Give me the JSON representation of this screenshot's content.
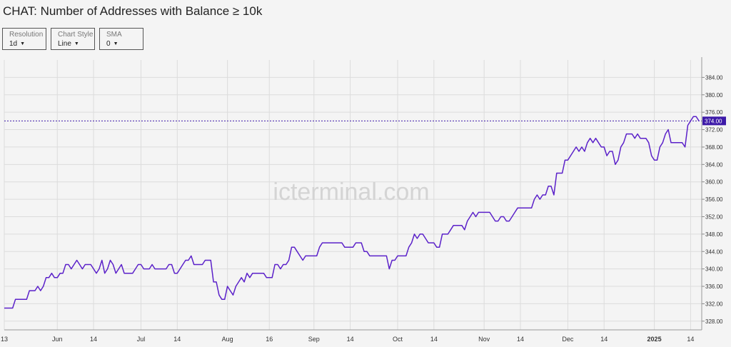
{
  "title": "CHAT: Number of Addresses with Balance ≥ 10k",
  "controls": [
    {
      "label": "Resolution",
      "value": "1d"
    },
    {
      "label": "Chart Style",
      "value": "Line"
    },
    {
      "label": "SMA",
      "value": "0"
    }
  ],
  "watermark": "icterminal.com",
  "colors": {
    "line": "#5b21c9",
    "badge": "#3d1aa8",
    "grid": "#dcdcdc",
    "plot_bg": "#f4f4f4"
  },
  "chart_data": {
    "type": "line",
    "ylim": [
      326,
      388
    ],
    "y_ticks": [
      "328.00",
      "332.00",
      "336.00",
      "340.00",
      "344.00",
      "348.00",
      "352.00",
      "356.00",
      "360.00",
      "364.00",
      "368.00",
      "372.00",
      "376.00",
      "380.00",
      "384.00"
    ],
    "x_range": [
      "2024-05-13",
      "2025-01-18"
    ],
    "x_ticks": [
      {
        "date": "2024-05-13",
        "label": "13",
        "bold": false
      },
      {
        "date": "2024-06-01",
        "label": "Jun",
        "bold": false
      },
      {
        "date": "2024-06-14",
        "label": "14",
        "bold": false
      },
      {
        "date": "2024-07-01",
        "label": "Jul",
        "bold": false
      },
      {
        "date": "2024-07-14",
        "label": "14",
        "bold": false
      },
      {
        "date": "2024-08-01",
        "label": "Aug",
        "bold": false
      },
      {
        "date": "2024-08-16",
        "label": "16",
        "bold": false
      },
      {
        "date": "2024-09-01",
        "label": "Sep",
        "bold": false
      },
      {
        "date": "2024-09-14",
        "label": "14",
        "bold": false
      },
      {
        "date": "2024-10-01",
        "label": "Oct",
        "bold": false
      },
      {
        "date": "2024-10-14",
        "label": "14",
        "bold": false
      },
      {
        "date": "2024-11-01",
        "label": "Nov",
        "bold": false
      },
      {
        "date": "2024-11-14",
        "label": "14",
        "bold": false
      },
      {
        "date": "2024-12-01",
        "label": "Dec",
        "bold": false
      },
      {
        "date": "2024-12-14",
        "label": "14",
        "bold": false
      },
      {
        "date": "2025-01-01",
        "label": "2025",
        "bold": true
      },
      {
        "date": "2025-01-14",
        "label": "14",
        "bold": false
      }
    ],
    "current_value": 374,
    "current_label": "374.00",
    "series": [
      {
        "points": [
          [
            "2024-05-13",
            331
          ],
          [
            "2024-05-15",
            331
          ],
          [
            "2024-05-16",
            331
          ],
          [
            "2024-05-17",
            333
          ],
          [
            "2024-05-18",
            333
          ],
          [
            "2024-05-20",
            333
          ],
          [
            "2024-05-21",
            333
          ],
          [
            "2024-05-22",
            335
          ],
          [
            "2024-05-23",
            335
          ],
          [
            "2024-05-24",
            335
          ],
          [
            "2024-05-25",
            336
          ],
          [
            "2024-05-26",
            335
          ],
          [
            "2024-05-27",
            336
          ],
          [
            "2024-05-28",
            338
          ],
          [
            "2024-05-29",
            338
          ],
          [
            "2024-05-30",
            339
          ],
          [
            "2024-05-31",
            338
          ],
          [
            "2024-06-01",
            338
          ],
          [
            "2024-06-02",
            339
          ],
          [
            "2024-06-03",
            339
          ],
          [
            "2024-06-04",
            341
          ],
          [
            "2024-06-05",
            341
          ],
          [
            "2024-06-06",
            340
          ],
          [
            "2024-06-07",
            341
          ],
          [
            "2024-06-08",
            342
          ],
          [
            "2024-06-09",
            341
          ],
          [
            "2024-06-10",
            340
          ],
          [
            "2024-06-11",
            341
          ],
          [
            "2024-06-12",
            341
          ],
          [
            "2024-06-13",
            341
          ],
          [
            "2024-06-14",
            340
          ],
          [
            "2024-06-15",
            339
          ],
          [
            "2024-06-16",
            340
          ],
          [
            "2024-06-17",
            342
          ],
          [
            "2024-06-18",
            339
          ],
          [
            "2024-06-19",
            340
          ],
          [
            "2024-06-20",
            342
          ],
          [
            "2024-06-21",
            341
          ],
          [
            "2024-06-22",
            339
          ],
          [
            "2024-06-23",
            340
          ],
          [
            "2024-06-24",
            341
          ],
          [
            "2024-06-25",
            339
          ],
          [
            "2024-06-26",
            339
          ],
          [
            "2024-06-27",
            339
          ],
          [
            "2024-06-28",
            339
          ],
          [
            "2024-06-29",
            340
          ],
          [
            "2024-06-30",
            341
          ],
          [
            "2024-07-01",
            341
          ],
          [
            "2024-07-02",
            340
          ],
          [
            "2024-07-03",
            340
          ],
          [
            "2024-07-04",
            340
          ],
          [
            "2024-07-05",
            341
          ],
          [
            "2024-07-06",
            340
          ],
          [
            "2024-07-07",
            340
          ],
          [
            "2024-07-08",
            340
          ],
          [
            "2024-07-09",
            340
          ],
          [
            "2024-07-10",
            340
          ],
          [
            "2024-07-11",
            341
          ],
          [
            "2024-07-12",
            341
          ],
          [
            "2024-07-13",
            339
          ],
          [
            "2024-07-14",
            339
          ],
          [
            "2024-07-15",
            340
          ],
          [
            "2024-07-16",
            341
          ],
          [
            "2024-07-17",
            342
          ],
          [
            "2024-07-18",
            342
          ],
          [
            "2024-07-19",
            343
          ],
          [
            "2024-07-20",
            341
          ],
          [
            "2024-07-21",
            341
          ],
          [
            "2024-07-22",
            341
          ],
          [
            "2024-07-23",
            341
          ],
          [
            "2024-07-24",
            342
          ],
          [
            "2024-07-25",
            342
          ],
          [
            "2024-07-26",
            342
          ],
          [
            "2024-07-27",
            337
          ],
          [
            "2024-07-28",
            337
          ],
          [
            "2024-07-29",
            334
          ],
          [
            "2024-07-30",
            333
          ],
          [
            "2024-07-31",
            333
          ],
          [
            "2024-08-01",
            336
          ],
          [
            "2024-08-02",
            335
          ],
          [
            "2024-08-03",
            334
          ],
          [
            "2024-08-04",
            336
          ],
          [
            "2024-08-05",
            337
          ],
          [
            "2024-08-06",
            338
          ],
          [
            "2024-08-07",
            337
          ],
          [
            "2024-08-08",
            339
          ],
          [
            "2024-08-09",
            338
          ],
          [
            "2024-08-10",
            339
          ],
          [
            "2024-08-11",
            339
          ],
          [
            "2024-08-12",
            339
          ],
          [
            "2024-08-13",
            339
          ],
          [
            "2024-08-14",
            339
          ],
          [
            "2024-08-15",
            338
          ],
          [
            "2024-08-16",
            338
          ],
          [
            "2024-08-17",
            338
          ],
          [
            "2024-08-18",
            341
          ],
          [
            "2024-08-19",
            341
          ],
          [
            "2024-08-20",
            340
          ],
          [
            "2024-08-21",
            341
          ],
          [
            "2024-08-22",
            341
          ],
          [
            "2024-08-23",
            342
          ],
          [
            "2024-08-24",
            345
          ],
          [
            "2024-08-25",
            345
          ],
          [
            "2024-08-26",
            344
          ],
          [
            "2024-08-27",
            343
          ],
          [
            "2024-08-28",
            342
          ],
          [
            "2024-08-29",
            343
          ],
          [
            "2024-08-30",
            343
          ],
          [
            "2024-08-31",
            343
          ],
          [
            "2024-09-01",
            343
          ],
          [
            "2024-09-02",
            343
          ],
          [
            "2024-09-03",
            345
          ],
          [
            "2024-09-04",
            346
          ],
          [
            "2024-09-05",
            346
          ],
          [
            "2024-09-06",
            346
          ],
          [
            "2024-09-07",
            346
          ],
          [
            "2024-09-08",
            346
          ],
          [
            "2024-09-09",
            346
          ],
          [
            "2024-09-10",
            346
          ],
          [
            "2024-09-11",
            346
          ],
          [
            "2024-09-12",
            345
          ],
          [
            "2024-09-13",
            345
          ],
          [
            "2024-09-14",
            345
          ],
          [
            "2024-09-15",
            345
          ],
          [
            "2024-09-16",
            346
          ],
          [
            "2024-09-17",
            346
          ],
          [
            "2024-09-18",
            346
          ],
          [
            "2024-09-19",
            344
          ],
          [
            "2024-09-20",
            344
          ],
          [
            "2024-09-21",
            343
          ],
          [
            "2024-09-22",
            343
          ],
          [
            "2024-09-23",
            343
          ],
          [
            "2024-09-24",
            343
          ],
          [
            "2024-09-25",
            343
          ],
          [
            "2024-09-26",
            343
          ],
          [
            "2024-09-27",
            343
          ],
          [
            "2024-09-28",
            340
          ],
          [
            "2024-09-29",
            342
          ],
          [
            "2024-09-30",
            342
          ],
          [
            "2024-10-01",
            343
          ],
          [
            "2024-10-02",
            343
          ],
          [
            "2024-10-03",
            343
          ],
          [
            "2024-10-04",
            343
          ],
          [
            "2024-10-05",
            345
          ],
          [
            "2024-10-06",
            346
          ],
          [
            "2024-10-07",
            348
          ],
          [
            "2024-10-08",
            347
          ],
          [
            "2024-10-09",
            348
          ],
          [
            "2024-10-10",
            348
          ],
          [
            "2024-10-11",
            347
          ],
          [
            "2024-10-12",
            346
          ],
          [
            "2024-10-13",
            346
          ],
          [
            "2024-10-14",
            346
          ],
          [
            "2024-10-15",
            345
          ],
          [
            "2024-10-16",
            345
          ],
          [
            "2024-10-17",
            348
          ],
          [
            "2024-10-18",
            348
          ],
          [
            "2024-10-19",
            348
          ],
          [
            "2024-10-20",
            349
          ],
          [
            "2024-10-21",
            350
          ],
          [
            "2024-10-22",
            350
          ],
          [
            "2024-10-23",
            350
          ],
          [
            "2024-10-24",
            350
          ],
          [
            "2024-10-25",
            349
          ],
          [
            "2024-10-26",
            351
          ],
          [
            "2024-10-27",
            352
          ],
          [
            "2024-10-28",
            353
          ],
          [
            "2024-10-29",
            352
          ],
          [
            "2024-10-30",
            353
          ],
          [
            "2024-10-31",
            353
          ],
          [
            "2024-11-01",
            353
          ],
          [
            "2024-11-02",
            353
          ],
          [
            "2024-11-03",
            353
          ],
          [
            "2024-11-04",
            352
          ],
          [
            "2024-11-05",
            351
          ],
          [
            "2024-11-06",
            351
          ],
          [
            "2024-11-07",
            352
          ],
          [
            "2024-11-08",
            352
          ],
          [
            "2024-11-09",
            351
          ],
          [
            "2024-11-10",
            351
          ],
          [
            "2024-11-11",
            352
          ],
          [
            "2024-11-12",
            353
          ],
          [
            "2024-11-13",
            354
          ],
          [
            "2024-11-14",
            354
          ],
          [
            "2024-11-15",
            354
          ],
          [
            "2024-11-16",
            354
          ],
          [
            "2024-11-17",
            354
          ],
          [
            "2024-11-18",
            354
          ],
          [
            "2024-11-19",
            356
          ],
          [
            "2024-11-20",
            357
          ],
          [
            "2024-11-21",
            356
          ],
          [
            "2024-11-22",
            357
          ],
          [
            "2024-11-23",
            357
          ],
          [
            "2024-11-24",
            359
          ],
          [
            "2024-11-25",
            359
          ],
          [
            "2024-11-26",
            357
          ],
          [
            "2024-11-27",
            362
          ],
          [
            "2024-11-28",
            362
          ],
          [
            "2024-11-29",
            362
          ],
          [
            "2024-11-30",
            365
          ],
          [
            "2024-12-01",
            365
          ],
          [
            "2024-12-02",
            366
          ],
          [
            "2024-12-03",
            367
          ],
          [
            "2024-12-04",
            368
          ],
          [
            "2024-12-05",
            367
          ],
          [
            "2024-12-06",
            368
          ],
          [
            "2024-12-07",
            367
          ],
          [
            "2024-12-08",
            369
          ],
          [
            "2024-12-09",
            370
          ],
          [
            "2024-12-10",
            369
          ],
          [
            "2024-12-11",
            370
          ],
          [
            "2024-12-12",
            369
          ],
          [
            "2024-12-13",
            368
          ],
          [
            "2024-12-14",
            368
          ],
          [
            "2024-12-15",
            366
          ],
          [
            "2024-12-16",
            367
          ],
          [
            "2024-12-17",
            367
          ],
          [
            "2024-12-18",
            364
          ],
          [
            "2024-12-19",
            365
          ],
          [
            "2024-12-20",
            368
          ],
          [
            "2024-12-21",
            369
          ],
          [
            "2024-12-22",
            371
          ],
          [
            "2024-12-23",
            371
          ],
          [
            "2024-12-24",
            371
          ],
          [
            "2024-12-25",
            370
          ],
          [
            "2024-12-26",
            371
          ],
          [
            "2024-12-27",
            370
          ],
          [
            "2024-12-28",
            370
          ],
          [
            "2024-12-29",
            370
          ],
          [
            "2024-12-30",
            369
          ],
          [
            "2024-12-31",
            366
          ],
          [
            "2025-01-01",
            365
          ],
          [
            "2025-01-02",
            365
          ],
          [
            "2025-01-03",
            368
          ],
          [
            "2025-01-04",
            369
          ],
          [
            "2025-01-05",
            371
          ],
          [
            "2025-01-06",
            372
          ],
          [
            "2025-01-07",
            369
          ],
          [
            "2025-01-08",
            369
          ],
          [
            "2025-01-09",
            369
          ],
          [
            "2025-01-10",
            369
          ],
          [
            "2025-01-11",
            369
          ],
          [
            "2025-01-12",
            368
          ],
          [
            "2025-01-13",
            373
          ],
          [
            "2025-01-14",
            374
          ],
          [
            "2025-01-15",
            375
          ],
          [
            "2025-01-16",
            375
          ],
          [
            "2025-01-17",
            374
          ]
        ]
      }
    ]
  }
}
